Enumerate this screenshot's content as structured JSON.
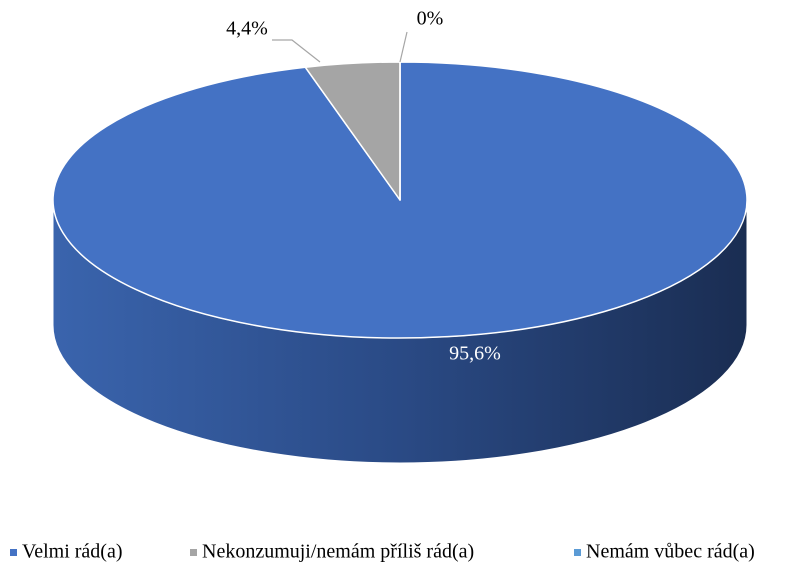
{
  "chart_data": {
    "type": "pie",
    "three_d": true,
    "categories": [
      "Velmi rád(a)",
      "Nekonzumuji/nemám příliš rád(a)",
      "Nemám vůbec rád(a)"
    ],
    "values": [
      95.6,
      4.4,
      0
    ],
    "value_labels": [
      "95,6%",
      "4,4%",
      "0%"
    ],
    "colors": [
      "#4472c4",
      "#a5a5a5",
      "#5b9bd5"
    ],
    "legend": "bottom"
  }
}
